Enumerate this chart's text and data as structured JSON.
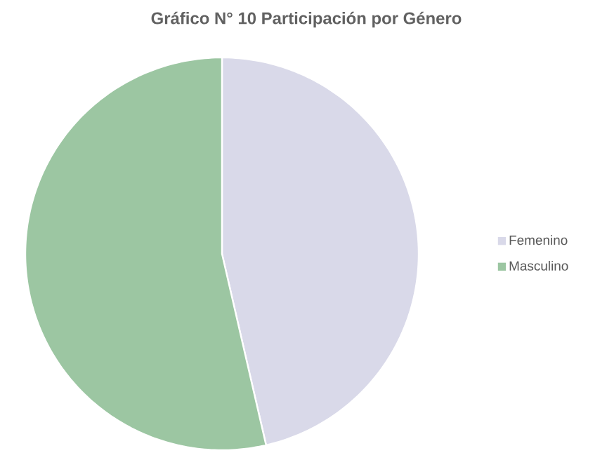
{
  "chart_data": {
    "type": "pie",
    "title": "Gráfico N° 10 Participación por Género",
    "categories": [
      "Femenino",
      "Masculino"
    ],
    "values": [
      46.4,
      53.6
    ],
    "colors": [
      "#d9d9e9",
      "#9cc6a2"
    ],
    "legend": "right"
  }
}
